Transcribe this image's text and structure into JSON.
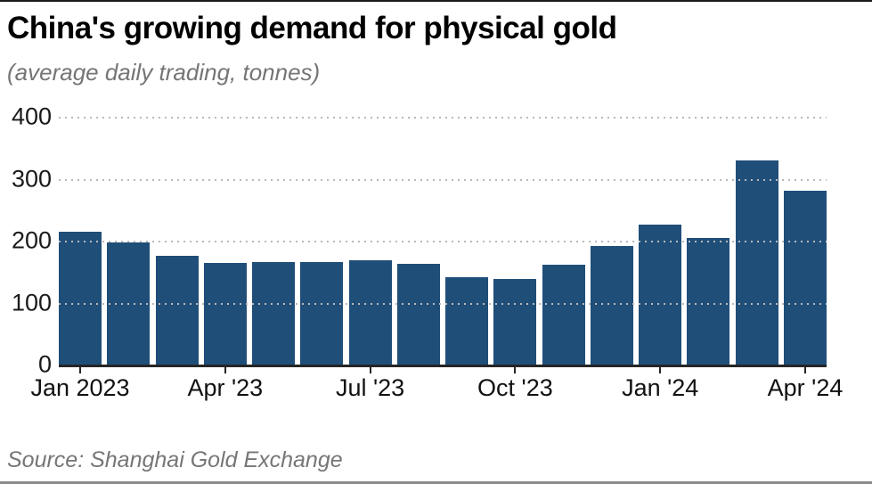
{
  "header": {
    "title": "China's growing demand for physical gold",
    "subtitle": "(average daily trading, tonnes)"
  },
  "footer": {
    "source": "Source: Shanghai Gold Exchange"
  },
  "chart_data": {
    "type": "bar",
    "title": "China's growing demand for physical gold",
    "subtitle": "(average daily trading, tonnes)",
    "source": "Source: Shanghai Gold Exchange",
    "categories": [
      "Jan 2023",
      "Feb 2023",
      "Mar 2023",
      "Apr 2023",
      "May 2023",
      "Jun 2023",
      "Jul 2023",
      "Aug 2023",
      "Sep 2023",
      "Oct 2023",
      "Nov 2023",
      "Dec 2023",
      "Jan 2024",
      "Feb 2024",
      "Mar 2024",
      "Apr 2024"
    ],
    "values": [
      215,
      197,
      176,
      164,
      166,
      165,
      168,
      162,
      141,
      138,
      161,
      191,
      226,
      205,
      330,
      280
    ],
    "xlabel": "",
    "ylabel": "",
    "ylim": [
      0,
      400
    ],
    "y_ticks": [
      0,
      100,
      200,
      300,
      400
    ],
    "x_tick_labels": [
      "Jan 2023",
      "Apr '23",
      "Jul '23",
      "Oct '23",
      "Jan '24",
      "Apr '24"
    ],
    "x_tick_indices": [
      0,
      3,
      6,
      9,
      12,
      15
    ],
    "grid": "horizontal-dotted",
    "legend": "none",
    "colors": {
      "bar": "#1f4e79",
      "grid": "#b9b9b9",
      "axis": "#262626",
      "text": "#111111",
      "muted": "#757575"
    }
  }
}
